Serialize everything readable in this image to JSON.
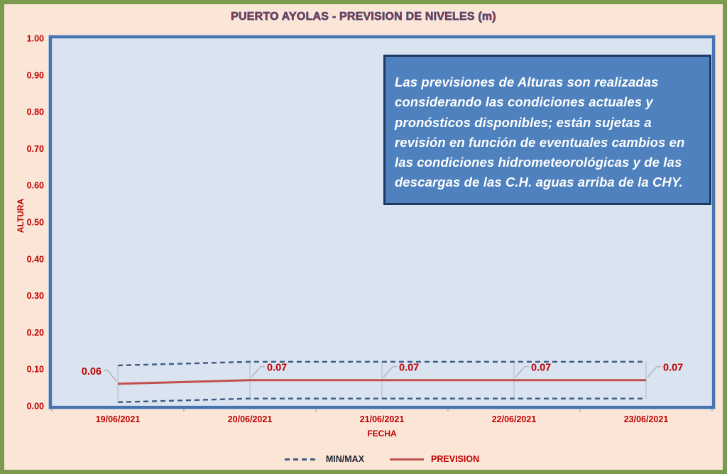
{
  "page_title": "PUERTO AYOLAS - PREVISION DE NIVELES (m)",
  "info_box": {
    "text": "Las previsiones de Alturas son realizadas considerando las condiciones actuales y pronósticos disponibles;  están sujetas a revisión en función de eventuales cambios en las condiciones hidrometeorológicas y de las descargas de las C.H. aguas arriba de la CHY."
  },
  "legend": {
    "minmax_label": "MIN/MAX",
    "prevision_label": "PREVISION"
  },
  "colors": {
    "canvas_bg": "#FBE5D6",
    "frame_green": "#7A9A4D",
    "plot_fill": "#DAE3F0",
    "plot_border": "#4773AE",
    "axis_text_red": "#C00000",
    "data_label_red": "#C00000",
    "prevision_line": "#C0504D",
    "minmax_line": "#3D5C80",
    "drop_line": "#B7BFCD",
    "leader_line": "#A6A6A6",
    "info_box_fill": "#4E81BD",
    "info_box_border": "#1F3864",
    "title_text": "#8C3B4B"
  },
  "chart_data": {
    "type": "line",
    "title": "PUERTO AYOLAS - PREVISION DE NIVELES (m)",
    "xlabel": "FECHA",
    "ylabel": "ALTURA",
    "categories": [
      "19/06/2021",
      "20/06/2021",
      "21/06/2021",
      "22/06/2021",
      "23/06/2021"
    ],
    "series": [
      {
        "name": "PREVISION",
        "values": [
          0.06,
          0.07,
          0.07,
          0.07,
          0.07
        ],
        "color": "#C0504D",
        "style": "solid"
      },
      {
        "name": "MAX",
        "values": [
          0.11,
          0.12,
          0.12,
          0.12,
          0.12
        ],
        "color": "#3D5C80",
        "style": "dashed"
      },
      {
        "name": "MIN",
        "values": [
          0.01,
          0.02,
          0.02,
          0.02,
          0.02
        ],
        "color": "#3D5C80",
        "style": "dashed"
      }
    ],
    "data_labels": [
      "0.06",
      "0.07",
      "0.07",
      "0.07",
      "0.07"
    ],
    "ylim": [
      0,
      1
    ],
    "y_tick_labels": [
      "1.00",
      "0.90",
      "0.80",
      "0.70",
      "0.60",
      "0.50",
      "0.40",
      "0.30",
      "0.20",
      "0.10",
      "0.00"
    ],
    "grid": false,
    "legend_position": "bottom",
    "legend_entries": [
      "MIN/MAX",
      "PREVISION"
    ]
  }
}
